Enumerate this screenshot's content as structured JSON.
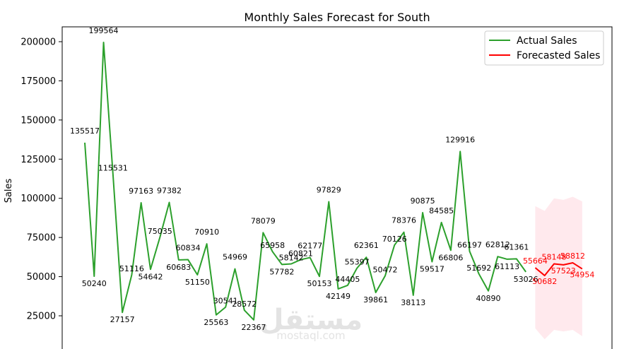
{
  "chart_data": {
    "type": "line",
    "title": "Monthly Sales Forecast for South",
    "xlabel": "",
    "ylabel": "Sales",
    "ylim": [
      0,
      210000
    ],
    "yticks": [
      25000,
      50000,
      75000,
      100000,
      125000,
      150000,
      175000,
      200000
    ],
    "grid": false,
    "legend_position": "top-right",
    "series": [
      {
        "name": "Actual Sales",
        "color": "#2ca02c",
        "values": [
          135517,
          50240,
          199564,
          115531,
          27157,
          51116,
          97163,
          54642,
          75035,
          97382,
          60683,
          60834,
          51150,
          70910,
          25563,
          30541,
          54969,
          28572,
          22367,
          78079,
          65958,
          57782,
          58142,
          60821,
          62177,
          50153,
          97829,
          42149,
          44405,
          55397,
          62361,
          39861,
          50472,
          70126,
          78376,
          38113,
          90875,
          59517,
          84585,
          66806,
          129916,
          66197,
          51692,
          40890,
          62812,
          61113,
          61361,
          53026
        ]
      },
      {
        "name": "Forecasted Sales",
        "color": "#ff0000",
        "values": [
          55664,
          50682,
          58148,
          57523,
          58812,
          54954
        ]
      }
    ],
    "confidence_band": {
      "color": "#ffc0cb",
      "lower": [
        17000,
        10000,
        16000,
        15000,
        16000,
        12000
      ],
      "upper": [
        95000,
        92000,
        100000,
        99000,
        101000,
        98000
      ]
    }
  },
  "watermark": {
    "arabic": "مستقل",
    "latin": "mostaql.com"
  }
}
